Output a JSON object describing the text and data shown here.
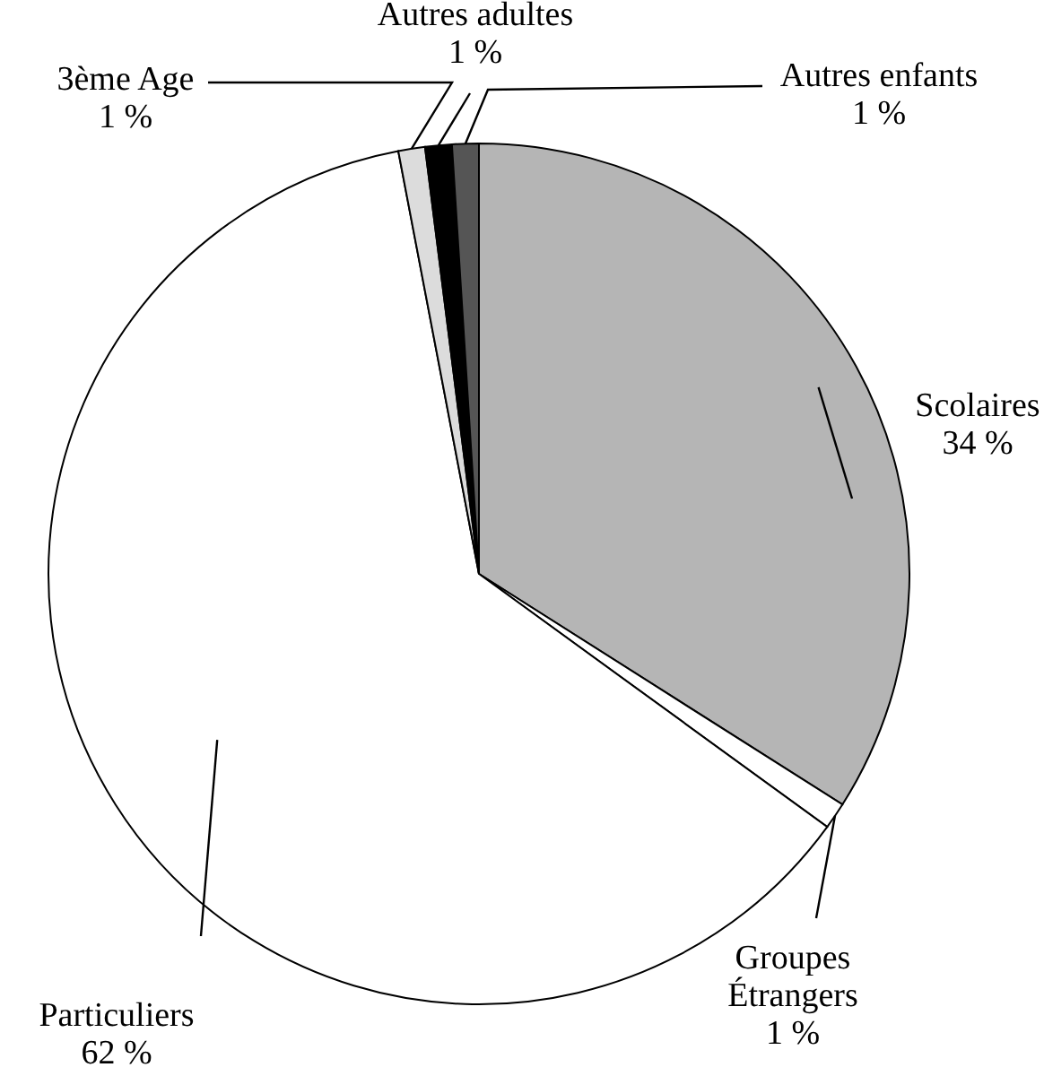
{
  "chart_data": {
    "type": "pie",
    "categories": [
      "Scolaires",
      "Groupes Étrangers",
      "Particuliers",
      "3ème Age",
      "Autres adultes",
      "Autres enfants"
    ],
    "values": [
      34,
      1,
      62,
      1,
      1,
      1
    ],
    "colors": [
      "#b5b5b5",
      "#ffffff",
      "#ffffff",
      "#dcdcdc",
      "#000000",
      "#555555"
    ],
    "value_labels": [
      "34 %",
      "1 %",
      "62 %",
      "1 %",
      "1 %",
      "1 %"
    ]
  }
}
